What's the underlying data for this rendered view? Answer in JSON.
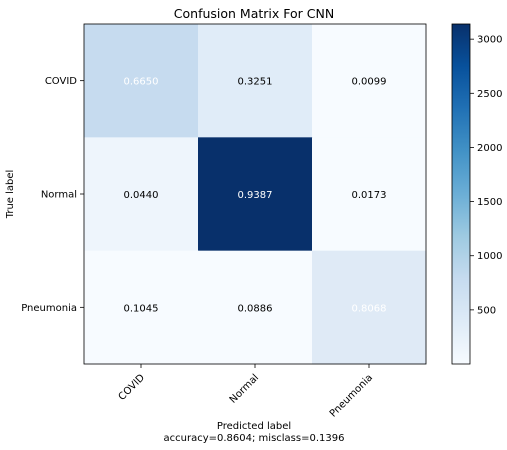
{
  "chart_data": {
    "type": "heatmap",
    "title": "Confusion Matrix For CNN",
    "xlabel": "Predicted label",
    "xlabel_sub": "accuracy=0.8604; misclass=0.1396",
    "ylabel": "True label",
    "x_categories": [
      "COVID",
      "Normal",
      "Pneumonia"
    ],
    "y_categories": [
      "COVID",
      "Normal",
      "Pneumonia"
    ],
    "values": [
      [
        "0.6650",
        "0.3251",
        "0.0099"
      ],
      [
        "0.0440",
        "0.9387",
        "0.0173"
      ],
      [
        "0.1045",
        "0.0886",
        "0.8068"
      ]
    ],
    "colorbar": {
      "ticks": [
        "500",
        "1000",
        "1500",
        "2000",
        "2500",
        "3000"
      ],
      "tick_values": [
        500,
        1000,
        1500,
        2000,
        2500,
        3000
      ],
      "range": [
        0,
        3140
      ]
    },
    "cell_colors": [
      [
        "#c6dbef",
        "#e0ecf8",
        "#f7fbff"
      ],
      [
        "#eef5fc",
        "#08306b",
        "#f7fbff"
      ],
      [
        "#f7fbff",
        "#f7fbff",
        "#dfeaf6"
      ]
    ],
    "label_colors": [
      [
        "#ffffff",
        "#000000",
        "#000000"
      ],
      [
        "#000000",
        "#ffffff",
        "#000000"
      ],
      [
        "#000000",
        "#000000",
        "#ffffff"
      ]
    ],
    "colormap": [
      "#f7fbff",
      "#deebf7",
      "#c6dbef",
      "#9ecae1",
      "#6baed6",
      "#4292c6",
      "#2171b5",
      "#08519c",
      "#08306b"
    ]
  }
}
